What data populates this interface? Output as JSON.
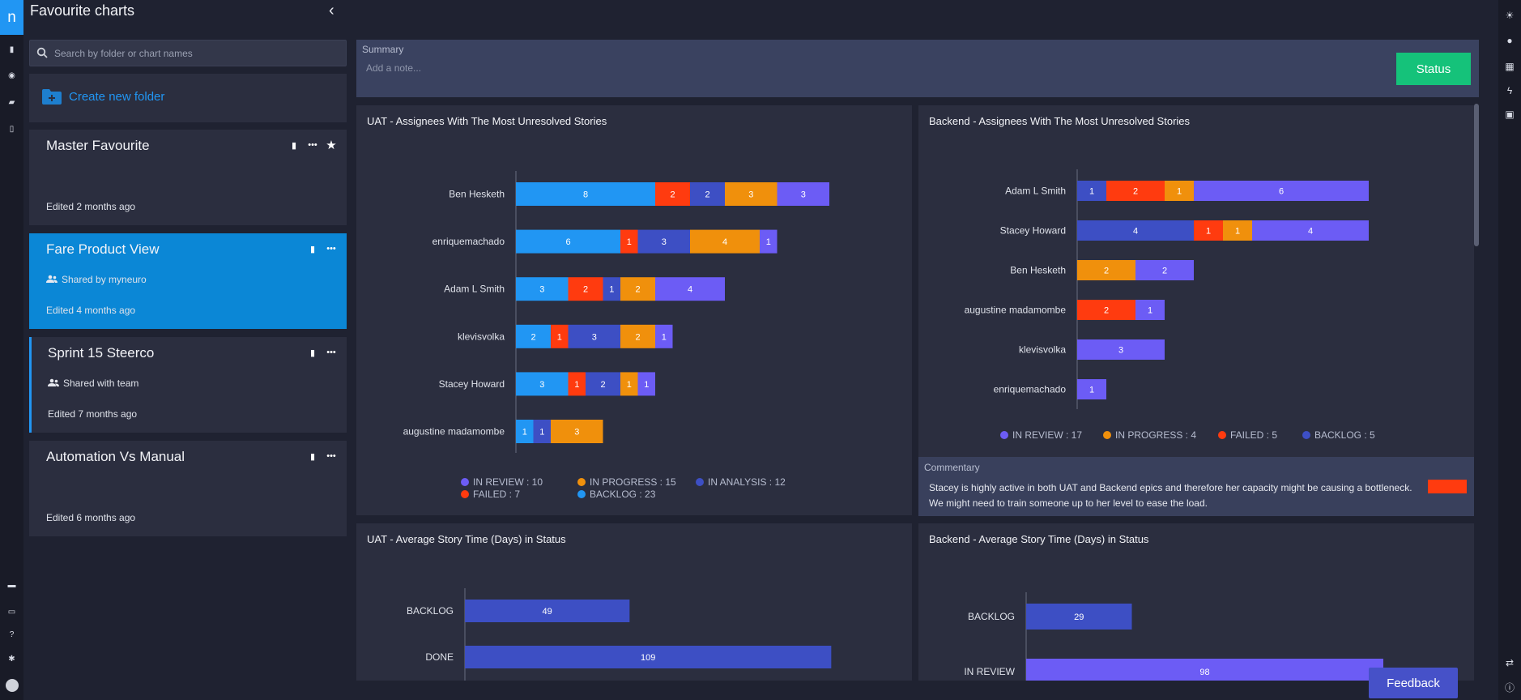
{
  "app": {
    "logo_letter": "n",
    "accent": "#2196f3"
  },
  "sidebar": {
    "title": "Favourite charts",
    "search_placeholder": "Search by folder or chart names",
    "create_folder_label": "Create new folder",
    "folders": [
      {
        "title": "Master Favourite",
        "subtitle": "",
        "edited": "Edited 2 months ago"
      },
      {
        "title": "Fare Product View",
        "subtitle": "Shared by myneuro",
        "edited": "Edited 4 months ago"
      },
      {
        "title": "Sprint 15 Steerco",
        "subtitle": "Shared with team",
        "edited": "Edited 7 months ago"
      },
      {
        "title": "Automation Vs Manual",
        "subtitle": "",
        "edited": "Edited 6 months ago"
      }
    ]
  },
  "summary": {
    "label": "Summary",
    "placeholder": "Add a note...",
    "status_label": "Status"
  },
  "commentary": {
    "label": "Commentary",
    "text": "Stacey is highly active in both UAT and Backend epics and therefore her capacity might be causing a bottleneck. We might need to train someone up to her level to ease the load.",
    "status_color": "#ff3b0f"
  },
  "feedback_label": "Feedback",
  "chart_data": [
    {
      "type": "bar",
      "orientation": "horizontal",
      "stacked": true,
      "title": "UAT - Assignees With The Most Unresolved Stories",
      "categories": [
        "Ben Hesketh",
        "enriquemachado",
        "Adam L Smith",
        "klevisvolka",
        "Stacey Howard",
        "augustine madamombe"
      ],
      "series": [
        {
          "name": "BACKLOG",
          "color": "#2196f3",
          "values": [
            8,
            6,
            3,
            2,
            3,
            1
          ]
        },
        {
          "name": "FAILED",
          "color": "#ff3b0f",
          "values": [
            2,
            1,
            2,
            1,
            1,
            0
          ]
        },
        {
          "name": "IN ANALYSIS",
          "color": "#3d4fc4",
          "values": [
            2,
            3,
            1,
            3,
            2,
            1
          ]
        },
        {
          "name": "IN PROGRESS",
          "color": "#f0900c",
          "values": [
            3,
            4,
            2,
            2,
            1,
            3
          ]
        },
        {
          "name": "IN REVIEW",
          "color": "#6c5cf5",
          "values": [
            3,
            1,
            4,
            1,
            1,
            0
          ]
        }
      ],
      "legend": [
        {
          "text": "IN REVIEW : 10",
          "color": "#6c5cf5"
        },
        {
          "text": "IN PROGRESS : 15",
          "color": "#f0900c"
        },
        {
          "text": "IN ANALYSIS : 12",
          "color": "#3d4fc4"
        },
        {
          "text": "FAILED : 7",
          "color": "#ff3b0f"
        },
        {
          "text": "BACKLOG : 23",
          "color": "#2196f3"
        }
      ]
    },
    {
      "type": "bar",
      "orientation": "horizontal",
      "stacked": true,
      "title": "Backend - Assignees With The Most Unresolved Stories",
      "categories": [
        "Adam L Smith",
        "Stacey Howard",
        "Ben Hesketh",
        "augustine madamombe",
        "klevisvolka",
        "enriquemachado"
      ],
      "series": [
        {
          "name": "BACKLOG",
          "color": "#3d4fc4",
          "values": [
            1,
            4,
            0,
            0,
            0,
            0
          ]
        },
        {
          "name": "FAILED",
          "color": "#ff3b0f",
          "values": [
            2,
            1,
            0,
            2,
            0,
            0
          ]
        },
        {
          "name": "IN PROGRESS",
          "color": "#f0900c",
          "values": [
            1,
            1,
            2,
            0,
            0,
            0
          ]
        },
        {
          "name": "IN REVIEW",
          "color": "#6c5cf5",
          "values": [
            6,
            4,
            2,
            1,
            3,
            1
          ]
        }
      ],
      "legend": [
        {
          "text": "IN REVIEW : 17",
          "color": "#6c5cf5"
        },
        {
          "text": "IN PROGRESS : 4",
          "color": "#f0900c"
        },
        {
          "text": "FAILED : 5",
          "color": "#ff3b0f"
        },
        {
          "text": "BACKLOG : 5",
          "color": "#3d4fc4"
        }
      ]
    },
    {
      "type": "bar",
      "orientation": "horizontal",
      "title": "UAT - Average Story Time (Days) in Status",
      "categories": [
        "BACKLOG",
        "DONE"
      ],
      "values": [
        49,
        109
      ],
      "colors": [
        "#3d4fc4",
        "#3d4fc4"
      ]
    },
    {
      "type": "bar",
      "orientation": "horizontal",
      "title": "Backend - Average Story Time (Days) in Status",
      "categories": [
        "BACKLOG",
        "IN REVIEW"
      ],
      "values": [
        29,
        98
      ],
      "colors": [
        "#3d4fc4",
        "#6c5cf5"
      ]
    }
  ]
}
